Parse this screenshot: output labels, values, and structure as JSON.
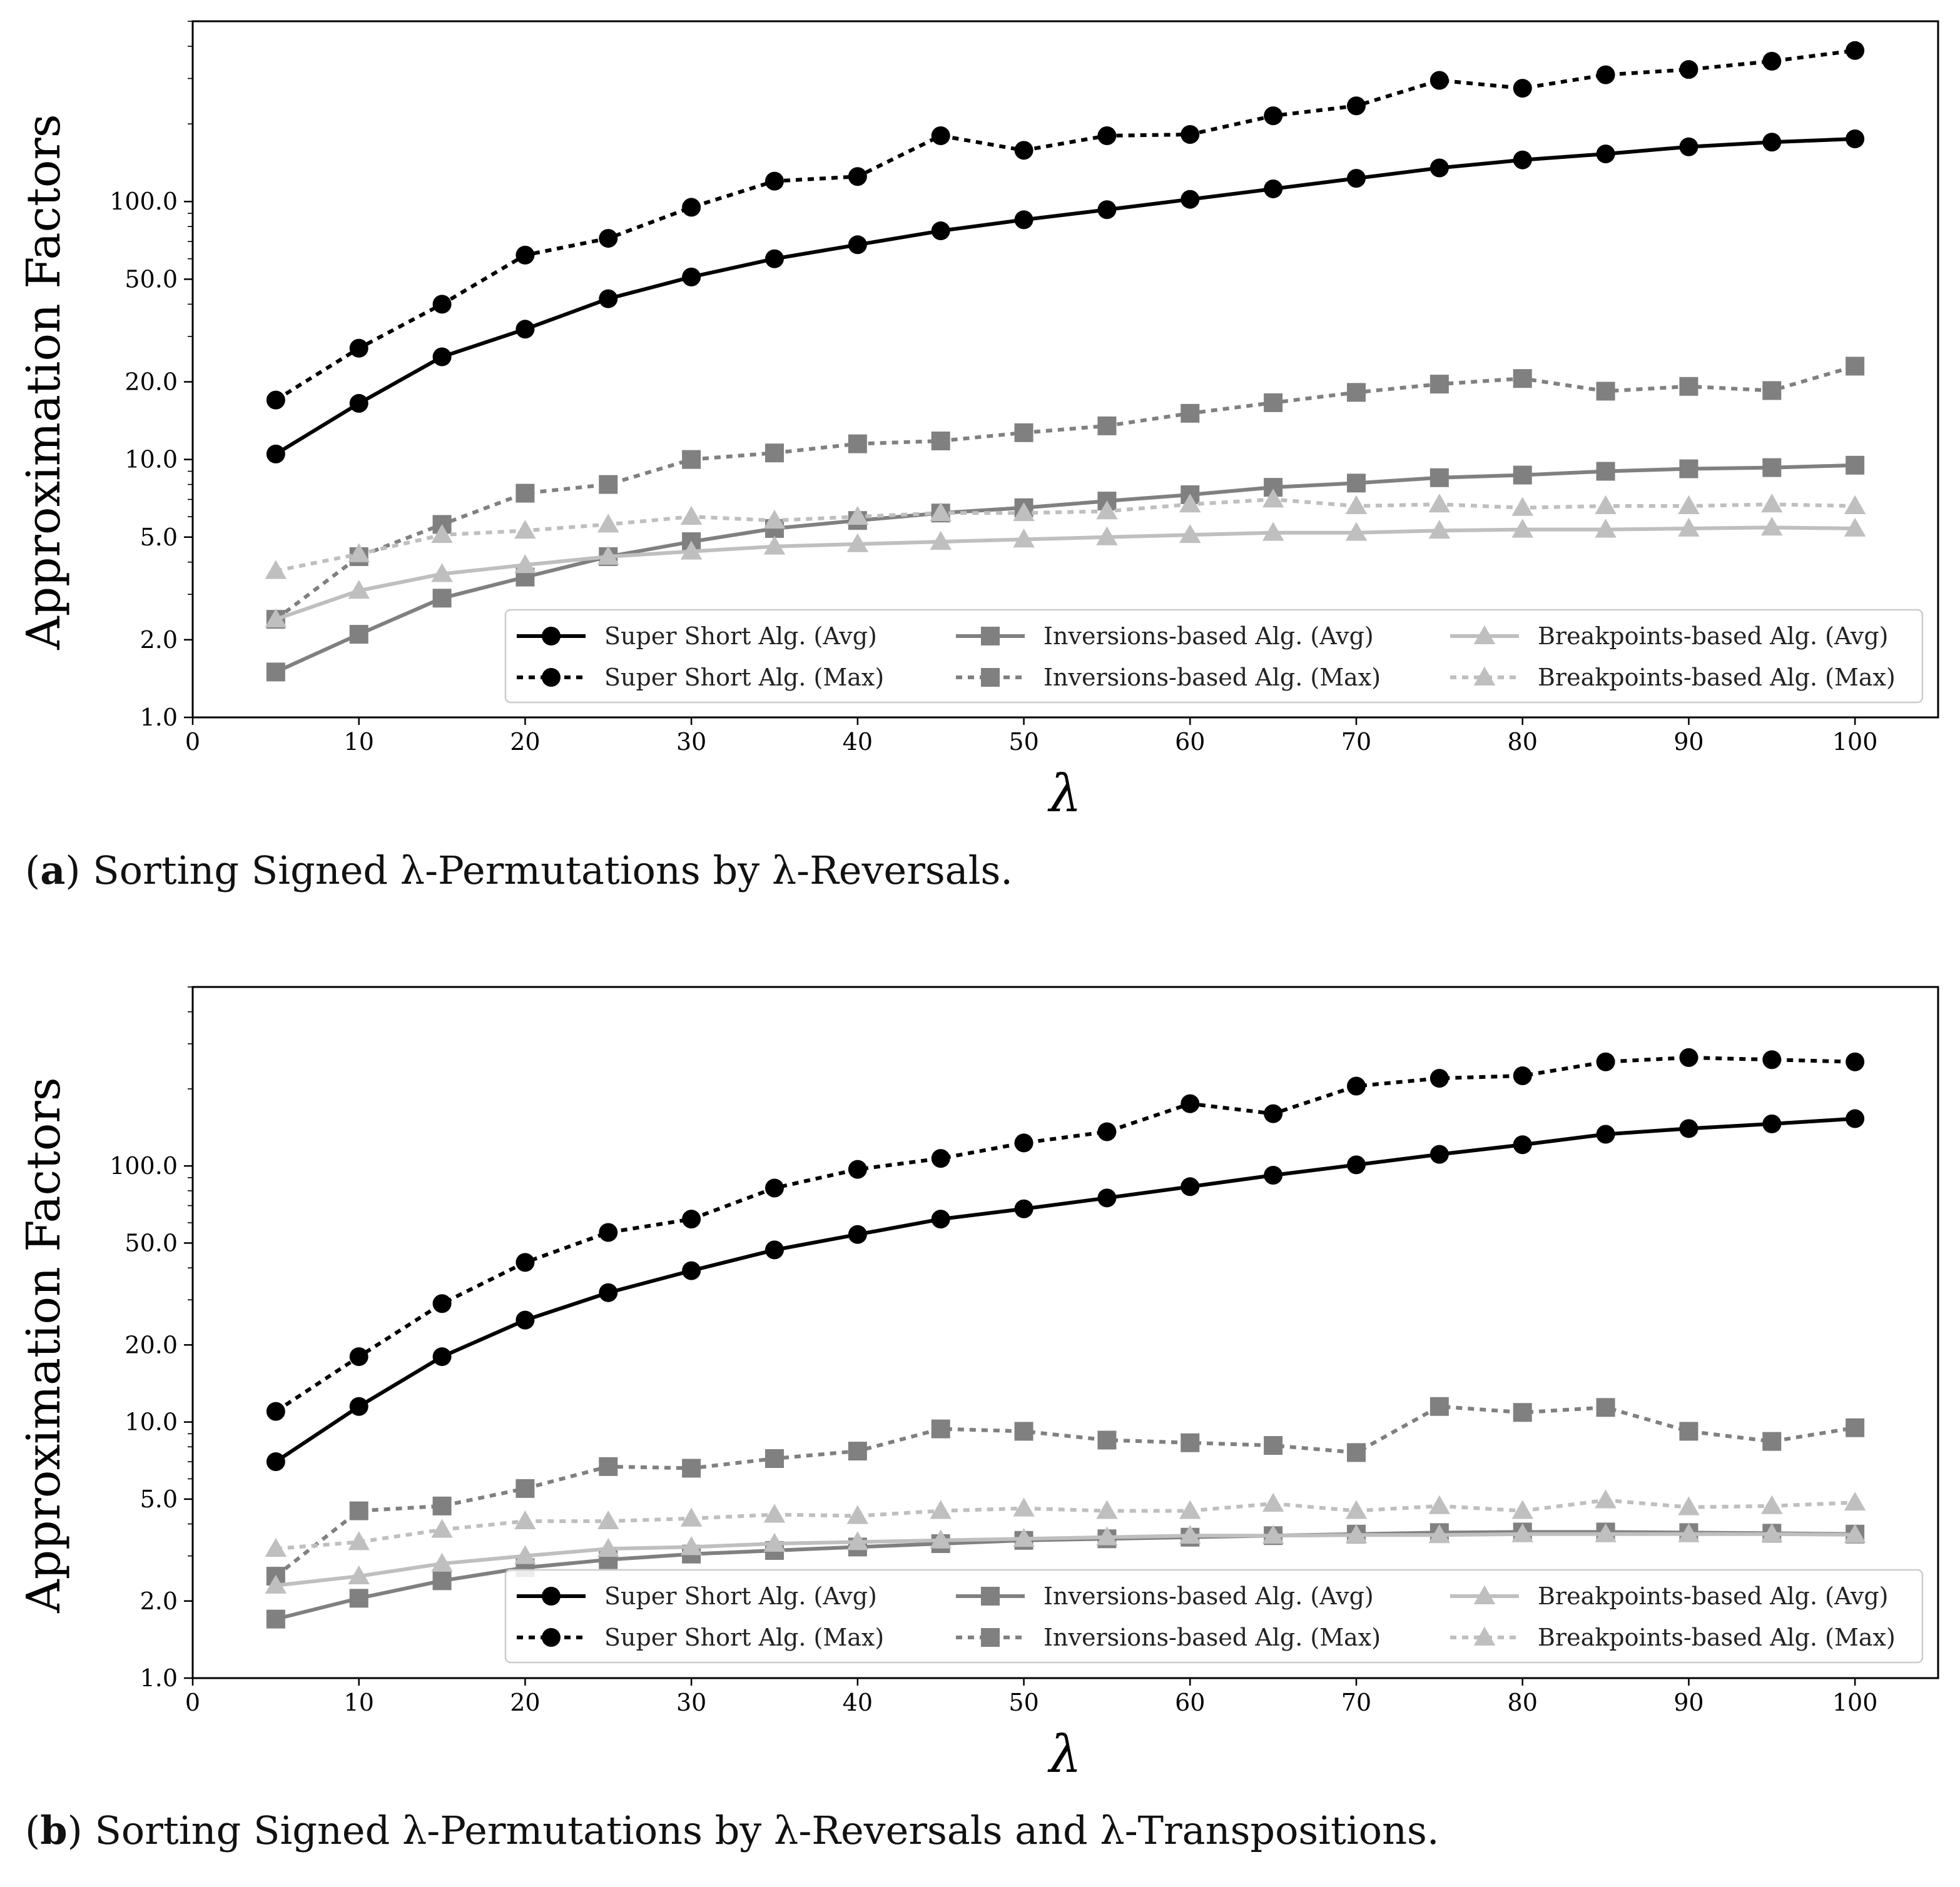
{
  "chart_data": [
    {
      "type": "line",
      "caption_letter": "a",
      "caption_text": ") Sorting Signed λ-Permutations by λ-Reversals.",
      "xlabel": "λ",
      "ylabel": "Approximation Factors",
      "xlim": [
        0,
        105
      ],
      "ylim": [
        1,
        500
      ],
      "yscale": "log",
      "xticks": [
        0,
        10,
        20,
        30,
        40,
        50,
        60,
        70,
        80,
        90,
        100
      ],
      "xtick_labels": [
        "0",
        "10",
        "20",
        "30",
        "40",
        "50",
        "60",
        "70",
        "80",
        "90",
        "100"
      ],
      "yticks": [
        1,
        2,
        5,
        10,
        20,
        50,
        100
      ],
      "ytick_labels": [
        "1.0",
        "2.0",
        "5.0",
        "10.0",
        "20.0",
        "50.0",
        "100.0"
      ],
      "x": [
        5,
        10,
        15,
        20,
        25,
        30,
        35,
        40,
        45,
        50,
        55,
        60,
        65,
        70,
        75,
        80,
        85,
        90,
        95,
        100
      ],
      "series": [
        {
          "name": "Super Short Alg. (Avg)",
          "color": "#000000",
          "style": "solid",
          "marker": "circle",
          "values": [
            10.5,
            16.5,
            25,
            32,
            42,
            51,
            60,
            68,
            77,
            85,
            93,
            102,
            112,
            123,
            135,
            145,
            153,
            163,
            170,
            175
          ]
        },
        {
          "name": "Super Short Alg. (Max)",
          "color": "#000000",
          "style": "dotted",
          "marker": "circle",
          "values": [
            17,
            27,
            40,
            62,
            72,
            95,
            120,
            125,
            180,
            158,
            180,
            182,
            215,
            235,
            295,
            275,
            310,
            325,
            350,
            385
          ]
        },
        {
          "name": "Inversions-based Alg. (Avg)",
          "color": "#808080",
          "style": "solid",
          "marker": "square",
          "values": [
            1.5,
            2.1,
            2.9,
            3.5,
            4.2,
            4.8,
            5.4,
            5.8,
            6.2,
            6.5,
            6.9,
            7.3,
            7.8,
            8.1,
            8.5,
            8.7,
            9.0,
            9.2,
            9.3,
            9.5
          ]
        },
        {
          "name": "Inversions-based Alg. (Max)",
          "color": "#808080",
          "style": "dotted",
          "marker": "square",
          "values": [
            2.4,
            4.2,
            5.6,
            7.4,
            8.0,
            10.0,
            10.6,
            11.5,
            11.8,
            12.7,
            13.5,
            15.1,
            16.6,
            18.2,
            19.6,
            20.6,
            18.4,
            19.2,
            18.5,
            23.0
          ]
        },
        {
          "name": "Breakpoints-based Alg. (Avg)",
          "color": "#bfbfbf",
          "style": "solid",
          "marker": "triangle",
          "values": [
            2.4,
            3.1,
            3.6,
            3.9,
            4.2,
            4.4,
            4.6,
            4.7,
            4.8,
            4.9,
            5.0,
            5.1,
            5.2,
            5.2,
            5.3,
            5.35,
            5.35,
            5.4,
            5.45,
            5.4
          ]
        },
        {
          "name": "Breakpoints-based Alg. (Max)",
          "color": "#bfbfbf",
          "style": "dotted",
          "marker": "triangle",
          "values": [
            3.7,
            4.3,
            5.1,
            5.3,
            5.6,
            6.0,
            5.8,
            6.0,
            6.2,
            6.2,
            6.3,
            6.7,
            7.0,
            6.6,
            6.7,
            6.5,
            6.6,
            6.6,
            6.7,
            6.6
          ]
        }
      ]
    },
    {
      "type": "line",
      "caption_letter": "b",
      "caption_text": ") Sorting Signed λ-Permutations by λ-Reversals and λ-Transpositions.",
      "xlabel": "λ",
      "ylabel": "Approximation Factors",
      "xlim": [
        0,
        105
      ],
      "ylim": [
        1,
        500
      ],
      "yscale": "log",
      "xticks": [
        0,
        10,
        20,
        30,
        40,
        50,
        60,
        70,
        80,
        90,
        100
      ],
      "xtick_labels": [
        "0",
        "10",
        "20",
        "30",
        "40",
        "50",
        "60",
        "70",
        "80",
        "90",
        "100"
      ],
      "yticks": [
        1,
        2,
        5,
        10,
        20,
        50,
        100
      ],
      "ytick_labels": [
        "1.0",
        "2.0",
        "5.0",
        "10.0",
        "20.0",
        "50.0",
        "100.0"
      ],
      "x": [
        5,
        10,
        15,
        20,
        25,
        30,
        35,
        40,
        45,
        50,
        55,
        60,
        65,
        70,
        75,
        80,
        85,
        90,
        95,
        100
      ],
      "series": [
        {
          "name": "Super Short Alg. (Avg)",
          "color": "#000000",
          "style": "solid",
          "marker": "circle",
          "values": [
            7.0,
            11.5,
            18,
            25,
            32,
            39,
            47,
            54,
            62,
            68,
            75,
            83,
            92,
            101,
            111,
            121,
            133,
            140,
            146,
            153
          ]
        },
        {
          "name": "Super Short Alg. (Max)",
          "color": "#000000",
          "style": "dotted",
          "marker": "circle",
          "values": [
            11,
            18,
            29,
            42,
            55,
            62,
            82,
            97,
            107,
            123,
            136,
            175,
            160,
            205,
            220,
            225,
            255,
            265,
            260,
            255
          ]
        },
        {
          "name": "Inversions-based Alg. (Avg)",
          "color": "#808080",
          "style": "solid",
          "marker": "square",
          "values": [
            1.7,
            2.05,
            2.4,
            2.7,
            2.9,
            3.05,
            3.15,
            3.25,
            3.35,
            3.45,
            3.5,
            3.55,
            3.6,
            3.65,
            3.7,
            3.72,
            3.72,
            3.7,
            3.68,
            3.65
          ]
        },
        {
          "name": "Inversions-based Alg. (Max)",
          "color": "#808080",
          "style": "dotted",
          "marker": "square",
          "values": [
            2.5,
            4.5,
            4.7,
            5.5,
            6.7,
            6.6,
            7.2,
            7.7,
            9.4,
            9.2,
            8.5,
            8.3,
            8.1,
            7.6,
            11.5,
            10.9,
            11.4,
            9.2,
            8.4,
            9.5
          ]
        },
        {
          "name": "Breakpoints-based Alg. (Avg)",
          "color": "#bfbfbf",
          "style": "solid",
          "marker": "triangle",
          "values": [
            2.3,
            2.5,
            2.8,
            3.0,
            3.2,
            3.25,
            3.35,
            3.4,
            3.45,
            3.5,
            3.55,
            3.6,
            3.6,
            3.62,
            3.62,
            3.65,
            3.65,
            3.65,
            3.65,
            3.63
          ]
        },
        {
          "name": "Breakpoints-based Alg. (Max)",
          "color": "#bfbfbf",
          "style": "dotted",
          "marker": "triangle",
          "values": [
            3.2,
            3.4,
            3.8,
            4.1,
            4.1,
            4.2,
            4.35,
            4.3,
            4.5,
            4.6,
            4.5,
            4.5,
            4.8,
            4.5,
            4.7,
            4.5,
            4.95,
            4.65,
            4.7,
            4.85
          ]
        }
      ]
    }
  ]
}
